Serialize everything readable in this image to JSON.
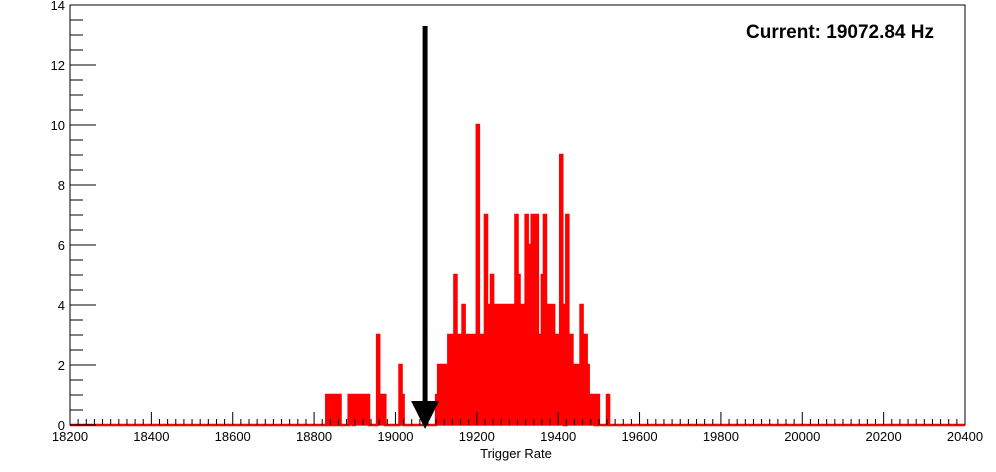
{
  "chart_data": {
    "type": "histogram",
    "title": "",
    "xlabel": "Trigger Rate",
    "ylabel": "",
    "xlim": [
      18200,
      20400
    ],
    "ylim": [
      0,
      14
    ],
    "x_ticks": [
      18200,
      18400,
      18600,
      18800,
      19000,
      19200,
      19400,
      19600,
      19800,
      20000,
      20200,
      20400
    ],
    "y_ticks": [
      0,
      2,
      4,
      6,
      8,
      10,
      12,
      14
    ],
    "bin_width": 5,
    "grid": false,
    "legend": "none",
    "annotation": "Current: 19072.84 Hz",
    "marker": {
      "x": 19072.84,
      "y_top": 13.3,
      "y_bottom": 0
    },
    "colors": {
      "series": "#ff0000",
      "axis": "#000000",
      "marker": "#000000"
    },
    "series": [
      {
        "bins": [
          [
            18830,
            1
          ],
          [
            18835,
            0
          ],
          [
            18840,
            1
          ],
          [
            18845,
            0
          ],
          [
            18850,
            1
          ],
          [
            18855,
            0
          ],
          [
            18860,
            1
          ],
          [
            18865,
            0
          ],
          [
            18870,
            0
          ],
          [
            18875,
            0
          ],
          [
            18880,
            0
          ],
          [
            18885,
            1
          ],
          [
            18890,
            1
          ],
          [
            18895,
            0
          ],
          [
            18900,
            1
          ],
          [
            18905,
            1
          ],
          [
            18910,
            1
          ],
          [
            18915,
            1
          ],
          [
            18920,
            1
          ],
          [
            18925,
            1
          ],
          [
            18930,
            1
          ],
          [
            18935,
            0
          ],
          [
            18940,
            0
          ],
          [
            18945,
            0
          ],
          [
            18950,
            0
          ],
          [
            18955,
            3
          ],
          [
            18960,
            1
          ],
          [
            18965,
            1
          ],
          [
            18970,
            1
          ],
          [
            18975,
            0
          ],
          [
            18980,
            0
          ],
          [
            18985,
            0
          ],
          [
            18990,
            0
          ],
          [
            18995,
            0
          ],
          [
            19000,
            0
          ],
          [
            19005,
            0
          ],
          [
            19010,
            2
          ],
          [
            19015,
            1
          ],
          [
            19020,
            0
          ],
          [
            19025,
            0
          ],
          [
            19030,
            0
          ],
          [
            19035,
            0
          ],
          [
            19040,
            0
          ],
          [
            19045,
            0
          ],
          [
            19050,
            0
          ],
          [
            19055,
            0
          ],
          [
            19060,
            0
          ],
          [
            19065,
            0
          ],
          [
            19070,
            0
          ],
          [
            19075,
            0
          ],
          [
            19080,
            0
          ],
          [
            19085,
            0
          ],
          [
            19090,
            0
          ],
          [
            19095,
            0
          ],
          [
            19100,
            1
          ],
          [
            19105,
            2
          ],
          [
            19110,
            1
          ],
          [
            19115,
            2
          ],
          [
            19120,
            2
          ],
          [
            19125,
            1
          ],
          [
            19130,
            3
          ],
          [
            19135,
            3
          ],
          [
            19140,
            3
          ],
          [
            19145,
            5
          ],
          [
            19150,
            2
          ],
          [
            19155,
            3
          ],
          [
            19160,
            3
          ],
          [
            19165,
            4
          ],
          [
            19170,
            1
          ],
          [
            19175,
            3
          ],
          [
            19180,
            3
          ],
          [
            19185,
            3
          ],
          [
            19190,
            1
          ],
          [
            19195,
            3
          ],
          [
            19200,
            10
          ],
          [
            19205,
            1
          ],
          [
            19210,
            3
          ],
          [
            19215,
            3
          ],
          [
            19220,
            7
          ],
          [
            19225,
            4
          ],
          [
            19230,
            4
          ],
          [
            19235,
            5
          ],
          [
            19240,
            3
          ],
          [
            19245,
            4
          ],
          [
            19250,
            1
          ],
          [
            19255,
            4
          ],
          [
            19260,
            1
          ],
          [
            19265,
            4
          ],
          [
            19270,
            3
          ],
          [
            19275,
            4
          ],
          [
            19280,
            4
          ],
          [
            19285,
            2
          ],
          [
            19290,
            4
          ],
          [
            19295,
            7
          ],
          [
            19300,
            5
          ],
          [
            19305,
            2
          ],
          [
            19310,
            4
          ],
          [
            19315,
            4
          ],
          [
            19320,
            7
          ],
          [
            19325,
            5
          ],
          [
            19330,
            6
          ],
          [
            19335,
            7
          ],
          [
            19340,
            2
          ],
          [
            19345,
            7
          ],
          [
            19350,
            3
          ],
          [
            19355,
            3
          ],
          [
            19360,
            5
          ],
          [
            19365,
            7
          ],
          [
            19370,
            3
          ],
          [
            19375,
            4
          ],
          [
            19380,
            3
          ],
          [
            19385,
            4
          ],
          [
            19390,
            2
          ],
          [
            19395,
            3
          ],
          [
            19400,
            2
          ],
          [
            19405,
            9
          ],
          [
            19410,
            4
          ],
          [
            19415,
            0
          ],
          [
            19420,
            7
          ],
          [
            19425,
            2
          ],
          [
            19430,
            3
          ],
          [
            19435,
            2
          ],
          [
            19440,
            1
          ],
          [
            19445,
            2
          ],
          [
            19450,
            2
          ],
          [
            19455,
            4
          ],
          [
            19460,
            2
          ],
          [
            19465,
            3
          ],
          [
            19470,
            2
          ],
          [
            19475,
            1
          ],
          [
            19480,
            1
          ],
          [
            19485,
            1
          ],
          [
            19490,
            0
          ],
          [
            19495,
            1
          ],
          [
            19500,
            0
          ],
          [
            19505,
            0
          ],
          [
            19510,
            0
          ],
          [
            19515,
            0
          ],
          [
            19520,
            1
          ]
        ]
      }
    ]
  }
}
